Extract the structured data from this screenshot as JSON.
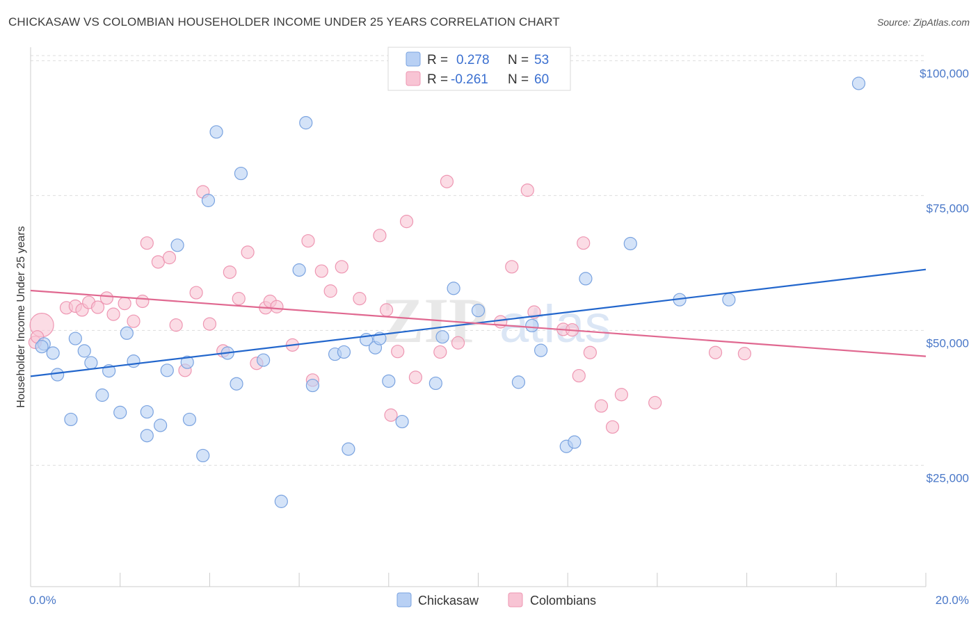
{
  "title": "CHICKASAW VS COLOMBIAN HOUSEHOLDER INCOME UNDER 25 YEARS CORRELATION CHART",
  "source": "Source: ZipAtlas.com",
  "colors": {
    "chickasaw_fill": "#b8d0f4",
    "chickasaw_stroke": "#7aa3e0",
    "chickasaw_line": "#2266cc",
    "colombian_fill": "#f8c4d4",
    "colombian_stroke": "#ee96b2",
    "colombian_line": "#e06890",
    "grid": "#dddddd",
    "tick_label": "#4a78c8"
  },
  "legend": {
    "r_label": "R =",
    "n_label": "N =",
    "rows": [
      {
        "name": "Chickasaw",
        "r": "0.278",
        "n": "53"
      },
      {
        "name": "Colombians",
        "r": "-0.261",
        "n": "60"
      }
    ]
  },
  "chart_data": {
    "type": "scatter",
    "title": "CHICKASAW VS COLOMBIAN HOUSEHOLDER INCOME UNDER 25 YEARS CORRELATION CHART",
    "xlabel": "",
    "ylabel": "Householder Income Under 25 years",
    "x_tick_labels": [
      "0.0%",
      "20.0%"
    ],
    "y_tick_labels": [
      "$25,000",
      "$50,000",
      "$75,000",
      "$100,000"
    ],
    "y_ticks": [
      25000,
      50000,
      75000,
      100000
    ],
    "xlim": [
      0,
      20
    ],
    "ylim": [
      2500,
      102500
    ],
    "watermark": "ZIPatlas",
    "series": [
      {
        "name": "Chickasaw",
        "r": 0.278,
        "n": 53,
        "trend": {
          "x": [
            0,
            20
          ],
          "y": [
            41500,
            61300
          ]
        },
        "points": [
          [
            0.3,
            47500
          ],
          [
            0.5,
            45800
          ],
          [
            0.6,
            41800
          ],
          [
            0.9,
            33500
          ],
          [
            1.0,
            48500
          ],
          [
            1.2,
            46200
          ],
          [
            1.35,
            44000
          ],
          [
            1.6,
            38000
          ],
          [
            1.75,
            42500
          ],
          [
            2.0,
            34800
          ],
          [
            2.15,
            49500
          ],
          [
            2.3,
            44300
          ],
          [
            2.6,
            34900
          ],
          [
            2.6,
            30500
          ],
          [
            2.9,
            32400
          ],
          [
            3.05,
            42600
          ],
          [
            3.28,
            65800
          ],
          [
            3.5,
            44100
          ],
          [
            3.55,
            33500
          ],
          [
            3.85,
            26800
          ],
          [
            3.97,
            74100
          ],
          [
            4.15,
            86800
          ],
          [
            4.4,
            45800
          ],
          [
            4.6,
            40100
          ],
          [
            4.7,
            79100
          ],
          [
            5.2,
            44500
          ],
          [
            5.6,
            18300
          ],
          [
            6.0,
            61200
          ],
          [
            6.15,
            88500
          ],
          [
            6.3,
            39800
          ],
          [
            6.8,
            45600
          ],
          [
            7.0,
            46000
          ],
          [
            7.1,
            28000
          ],
          [
            7.5,
            48300
          ],
          [
            7.7,
            46800
          ],
          [
            7.8,
            48500
          ],
          [
            8.0,
            40600
          ],
          [
            8.3,
            33100
          ],
          [
            9.05,
            40200
          ],
          [
            9.2,
            48800
          ],
          [
            9.45,
            57800
          ],
          [
            10.0,
            53700
          ],
          [
            10.9,
            40400
          ],
          [
            11.2,
            50900
          ],
          [
            11.4,
            46300
          ],
          [
            11.97,
            28500
          ],
          [
            12.15,
            29300
          ],
          [
            12.4,
            59600
          ],
          [
            13.4,
            66100
          ],
          [
            14.5,
            55700
          ],
          [
            15.6,
            55700
          ],
          [
            18.5,
            95800
          ],
          [
            0.25,
            47000
          ]
        ]
      },
      {
        "name": "Colombians",
        "r": -0.261,
        "n": 60,
        "trend": {
          "x": [
            0,
            20
          ],
          "y": [
            57400,
            45200
          ]
        },
        "points": [
          [
            0.1,
            47800
          ],
          [
            0.25,
            51000
          ],
          [
            0.8,
            54200
          ],
          [
            1.0,
            54500
          ],
          [
            1.15,
            53800
          ],
          [
            1.3,
            55200
          ],
          [
            1.5,
            54300
          ],
          [
            1.7,
            56000
          ],
          [
            1.85,
            53000
          ],
          [
            2.1,
            55000
          ],
          [
            2.3,
            51700
          ],
          [
            2.5,
            55400
          ],
          [
            2.6,
            66200
          ],
          [
            2.85,
            62700
          ],
          [
            3.1,
            63500
          ],
          [
            3.25,
            51000
          ],
          [
            3.45,
            42600
          ],
          [
            3.7,
            57000
          ],
          [
            3.85,
            75700
          ],
          [
            4.0,
            51200
          ],
          [
            4.3,
            46200
          ],
          [
            4.45,
            60800
          ],
          [
            4.65,
            55900
          ],
          [
            4.85,
            64500
          ],
          [
            5.05,
            43900
          ],
          [
            5.25,
            54200
          ],
          [
            5.35,
            55400
          ],
          [
            5.5,
            54400
          ],
          [
            5.85,
            47300
          ],
          [
            6.2,
            66600
          ],
          [
            6.3,
            40800
          ],
          [
            6.5,
            61000
          ],
          [
            6.7,
            57300
          ],
          [
            6.95,
            61800
          ],
          [
            7.35,
            55900
          ],
          [
            7.8,
            67600
          ],
          [
            7.95,
            53800
          ],
          [
            8.05,
            34300
          ],
          [
            8.2,
            46100
          ],
          [
            8.4,
            70200
          ],
          [
            8.6,
            41300
          ],
          [
            9.15,
            46000
          ],
          [
            9.3,
            77600
          ],
          [
            9.55,
            47700
          ],
          [
            10.5,
            51600
          ],
          [
            10.75,
            61800
          ],
          [
            11.1,
            76000
          ],
          [
            11.25,
            53400
          ],
          [
            11.9,
            50200
          ],
          [
            12.1,
            50100
          ],
          [
            12.25,
            41600
          ],
          [
            12.35,
            66200
          ],
          [
            12.5,
            45900
          ],
          [
            12.75,
            36000
          ],
          [
            13.0,
            32100
          ],
          [
            13.2,
            38100
          ],
          [
            13.95,
            36600
          ],
          [
            15.3,
            45900
          ],
          [
            15.95,
            45700
          ],
          [
            0.15,
            48800
          ]
        ]
      }
    ]
  }
}
